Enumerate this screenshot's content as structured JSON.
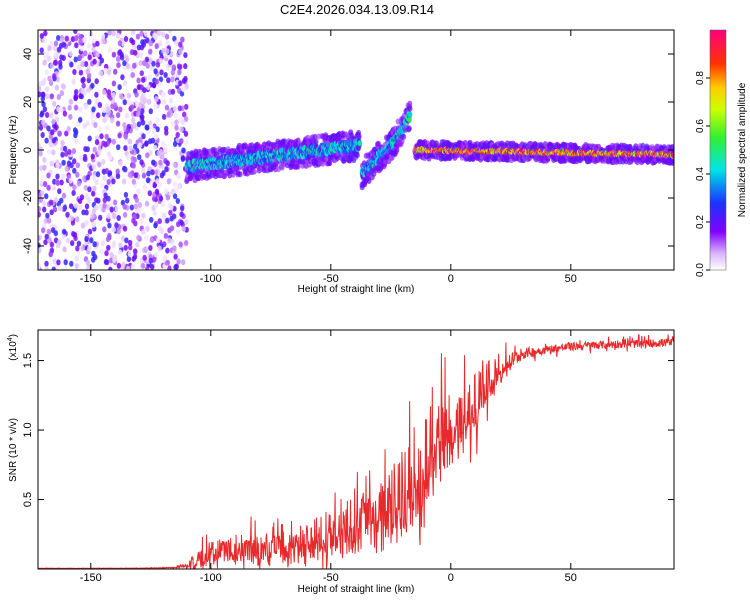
{
  "figure": {
    "title": "C2E4.2026.034.13.09.R14"
  },
  "chart_data": [
    {
      "type": "heatmap",
      "title": "C2E4.2026.034.13.09.R14",
      "xlabel": "Height of straight line (km)",
      "ylabel": "Frequency (Hz)",
      "xlim": [
        -172,
        93
      ],
      "ylim": [
        -50,
        50
      ],
      "xticks": [
        -150,
        -100,
        -50,
        0,
        50
      ],
      "xtick_labels": [
        "-150",
        "-100",
        "-50",
        "0",
        "50"
      ],
      "yticks": [
        -40,
        -20,
        0,
        20,
        40
      ],
      "ytick_labels": [
        "-40",
        "-20",
        "0",
        "20",
        "40"
      ],
      "colorbar": {
        "label": "Normalized spectral amplitude",
        "range": [
          0,
          1
        ],
        "ticks": [
          0.0,
          0.2,
          0.4,
          0.6,
          0.8
        ],
        "tick_labels": [
          "0.0",
          "0.2",
          "0.4",
          "0.6",
          "0.8"
        ],
        "colormap": "rainbow (white-violet-blue-cyan-green-yellow-red-magenta)"
      },
      "features": {
        "noise_region_x": [
          -172,
          -110
        ],
        "noise_amplitude": 0.25,
        "signal_segments": [
          {
            "x": [
              -110,
              -38
            ],
            "freq_start": -7,
            "freq_end": 2,
            "amplitude": 0.45
          },
          {
            "x": [
              -37,
              -24
            ],
            "freq_start": -10,
            "freq_end": 3,
            "amplitude": 0.45
          },
          {
            "x": [
              -24,
              -17
            ],
            "freq_start": 3,
            "freq_end": 14,
            "amplitude": 0.5
          },
          {
            "x": [
              -15,
              93
            ],
            "freq_start": 0,
            "freq_end": -2,
            "amplitude": 0.95
          }
        ]
      }
    },
    {
      "type": "line",
      "xlabel": "Height of straight line (km)",
      "ylabel": "SNR (10 * v/v)",
      "y_multiplier": "(x10⁴)",
      "y_multiplier_base": "(x10",
      "y_multiplier_exp": "4",
      "y_multiplier_close": ")",
      "xlim": [
        -172,
        93
      ],
      "ylim": [
        0,
        1.72
      ],
      "xticks": [
        -150,
        -100,
        -50,
        0,
        50
      ],
      "xtick_labels": [
        "-150",
        "-100",
        "-50",
        "0",
        "50"
      ],
      "yticks": [
        0.5,
        1.0,
        1.5
      ],
      "ytick_labels": [
        "0.5",
        "1.0",
        "1.5"
      ],
      "color": "#e8292b",
      "series": [
        {
          "name": "SNR",
          "x": [
            -172,
            -150,
            -130,
            -115,
            -110,
            -105,
            -100,
            -95,
            -90,
            -85,
            -80,
            -75,
            -70,
            -65,
            -60,
            -55,
            -50,
            -45,
            -40,
            -35,
            -30,
            -25,
            -20,
            -17,
            -15,
            -12,
            -10,
            -5,
            0,
            5,
            10,
            15,
            20,
            25,
            30,
            40,
            50,
            60,
            70,
            80,
            90,
            93
          ],
          "y": [
            0.005,
            0.005,
            0.006,
            0.01,
            0.03,
            0.08,
            0.13,
            0.15,
            0.15,
            0.17,
            0.16,
            0.14,
            0.16,
            0.18,
            0.2,
            0.24,
            0.26,
            0.3,
            0.34,
            0.38,
            0.42,
            0.5,
            0.55,
            0.58,
            0.55,
            0.62,
            0.85,
            0.95,
            1.05,
            1.1,
            1.2,
            1.35,
            1.45,
            1.5,
            1.55,
            1.58,
            1.6,
            1.61,
            1.62,
            1.62,
            1.63,
            1.63
          ],
          "fluctuation": [
            0.001,
            0.001,
            0.001,
            0.003,
            0.015,
            0.07,
            0.08,
            0.09,
            0.1,
            0.1,
            0.1,
            0.1,
            0.11,
            0.12,
            0.13,
            0.14,
            0.15,
            0.16,
            0.18,
            0.2,
            0.22,
            0.26,
            0.3,
            0.3,
            0.2,
            0.35,
            0.3,
            0.28,
            0.25,
            0.22,
            0.2,
            0.15,
            0.1,
            0.06,
            0.04,
            0.03,
            0.03,
            0.03,
            0.03,
            0.03,
            0.03,
            0.03
          ]
        }
      ]
    }
  ]
}
